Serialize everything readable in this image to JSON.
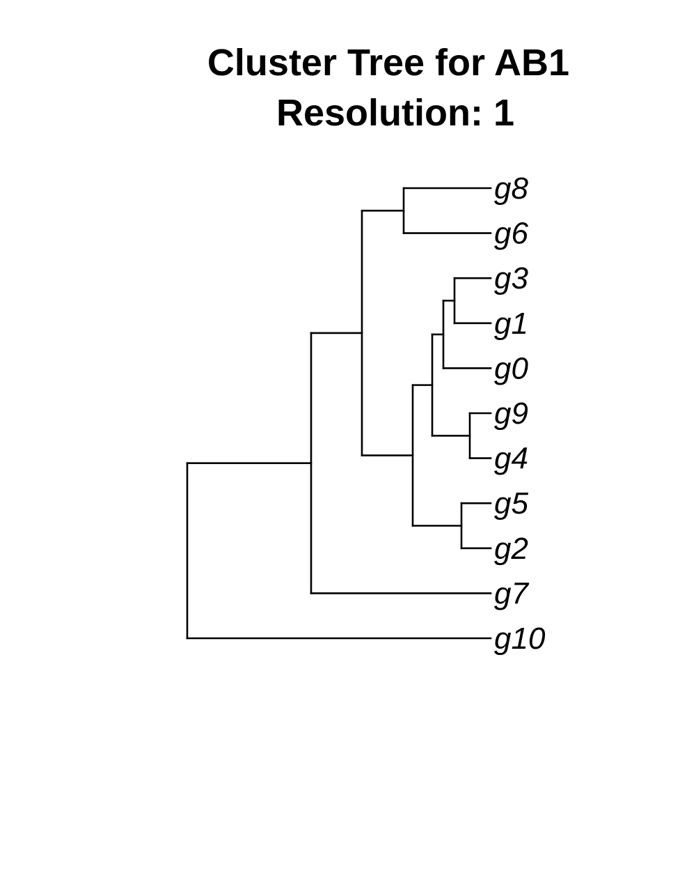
{
  "title": {
    "line1": "Cluster Tree for AB1",
    "line2": "Resolution: 1"
  },
  "tree": {
    "tips": [
      {
        "id": "g8",
        "label": "g8"
      },
      {
        "id": "g6",
        "label": "g6"
      },
      {
        "id": "g3",
        "label": "g3"
      },
      {
        "id": "g1",
        "label": "g1"
      },
      {
        "id": "g0",
        "label": "g0"
      },
      {
        "id": "g9",
        "label": "g9"
      },
      {
        "id": "g4",
        "label": "g4"
      },
      {
        "id": "g5",
        "label": "g5"
      },
      {
        "id": "g2",
        "label": "g2"
      },
      {
        "id": "g7",
        "label": "g7"
      },
      {
        "id": "g10",
        "label": "g10"
      }
    ]
  }
}
